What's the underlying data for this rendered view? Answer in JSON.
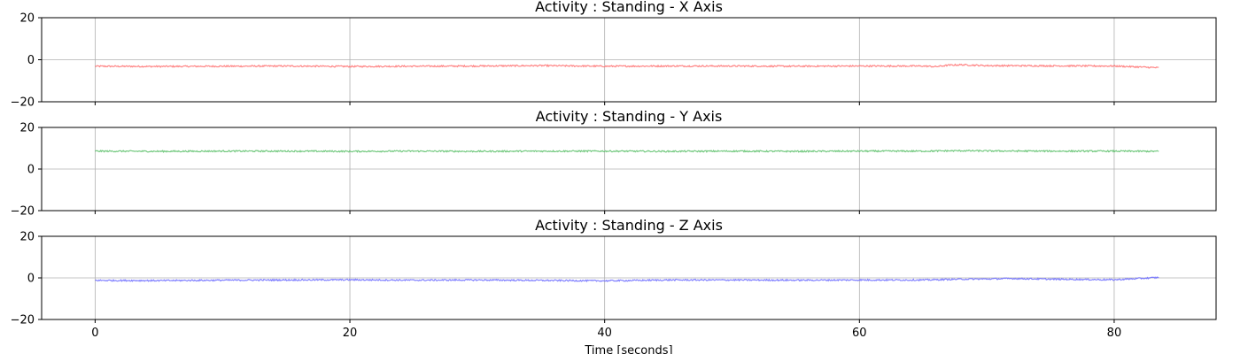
{
  "chart_data": [
    {
      "type": "line",
      "title": "Activity : Standing - X Axis",
      "xlabel": "",
      "ylabel": "",
      "xlim": [
        -4.2,
        88
      ],
      "ylim": [
        -20,
        20
      ],
      "xticks": [
        0,
        20,
        40,
        60,
        80
      ],
      "yticks": [
        -20,
        0,
        20
      ],
      "grid": true,
      "color": "#ff6f6f",
      "series": [
        {
          "x": [
            0,
            5,
            10,
            15,
            20,
            25,
            30,
            35,
            40,
            45,
            50,
            55,
            60,
            65,
            66,
            67,
            68,
            70,
            75,
            80,
            83.5
          ],
          "values": [
            -3.1,
            -3.2,
            -3.1,
            -3.0,
            -3.2,
            -3.1,
            -3.0,
            -2.8,
            -3.1,
            -3.0,
            -3.0,
            -3.1,
            -3.0,
            -3.0,
            -3.3,
            -2.6,
            -2.4,
            -2.8,
            -2.9,
            -3.0,
            -3.8
          ]
        }
      ]
    },
    {
      "type": "line",
      "title": "Activity : Standing - Y Axis",
      "xlabel": "",
      "ylabel": "",
      "xlim": [
        -4.2,
        88
      ],
      "ylim": [
        -20,
        20
      ],
      "xticks": [
        0,
        20,
        40,
        60,
        80
      ],
      "yticks": [
        -20,
        0,
        20
      ],
      "grid": true,
      "color": "#5cbf6a",
      "series": [
        {
          "x": [
            0,
            5,
            10,
            15,
            20,
            25,
            30,
            35,
            40,
            45,
            50,
            55,
            60,
            65,
            68,
            70,
            75,
            80,
            83.5
          ],
          "values": [
            8.6,
            8.5,
            8.6,
            8.6,
            8.5,
            8.6,
            8.5,
            8.6,
            8.6,
            8.5,
            8.6,
            8.5,
            8.6,
            8.6,
            8.8,
            8.7,
            8.6,
            8.6,
            8.5
          ]
        }
      ]
    },
    {
      "type": "line",
      "title": "Activity : Standing - Z Axis",
      "xlabel": "Time [seconds]",
      "ylabel": "",
      "xlim": [
        -4.2,
        88
      ],
      "ylim": [
        -20,
        20
      ],
      "xticks": [
        0,
        20,
        40,
        60,
        80
      ],
      "yticks": [
        -20,
        0,
        20
      ],
      "grid": true,
      "color": "#6b6bff",
      "series": [
        {
          "x": [
            0,
            5,
            10,
            15,
            20,
            25,
            30,
            35,
            40,
            45,
            50,
            55,
            60,
            65,
            68,
            70,
            72,
            75,
            80,
            83.5
          ],
          "values": [
            -1.2,
            -1.3,
            -1.1,
            -1.0,
            -0.9,
            -1.1,
            -1.0,
            -1.2,
            -1.4,
            -1.0,
            -1.0,
            -1.1,
            -1.0,
            -1.0,
            -0.6,
            -0.5,
            -0.3,
            -0.6,
            -0.9,
            0.2
          ]
        }
      ]
    }
  ]
}
